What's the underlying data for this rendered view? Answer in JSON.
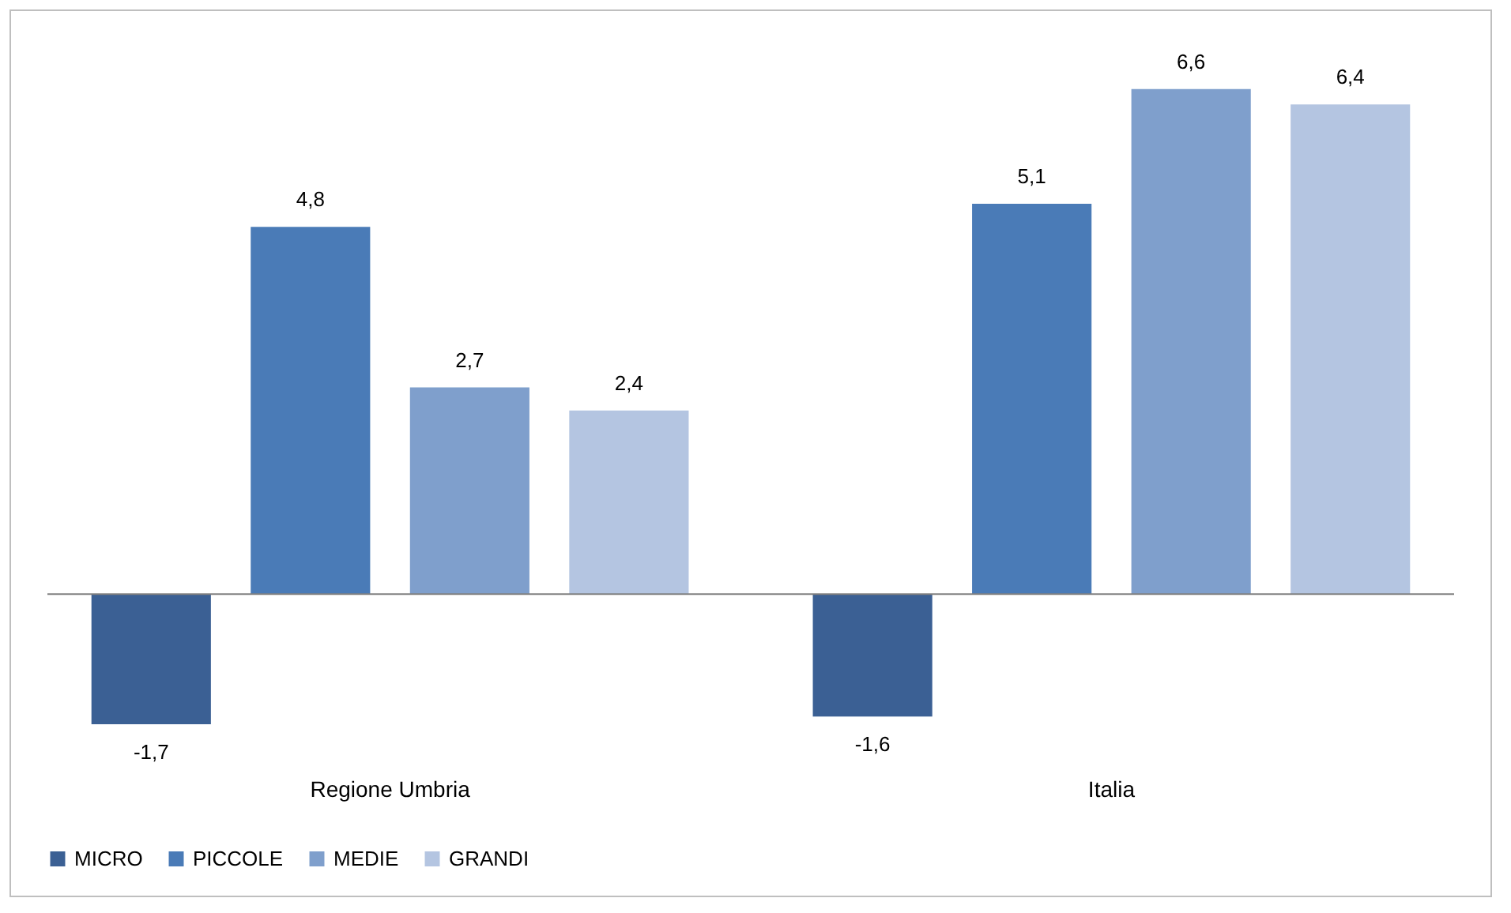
{
  "chart_data": {
    "type": "bar",
    "categories": [
      "Regione Umbria",
      "Italia"
    ],
    "series": [
      {
        "name": "MICRO",
        "color": "#3b6094",
        "values": [
          -1.7,
          -1.6
        ],
        "value_labels": [
          "-1,7",
          "-1,6"
        ]
      },
      {
        "name": "PICCOLE",
        "color": "#4a7bb7",
        "values": [
          4.8,
          5.1
        ],
        "value_labels": [
          "4,8",
          "5,1"
        ]
      },
      {
        "name": "MEDIE",
        "color": "#7f9fcc",
        "values": [
          2.7,
          6.6
        ],
        "value_labels": [
          "2,7",
          "6,6"
        ]
      },
      {
        "name": "GRANDI",
        "color": "#b4c5e1",
        "values": [
          2.4,
          6.4
        ],
        "value_labels": [
          "2,4",
          "6,4"
        ]
      }
    ],
    "legend": "bottom"
  }
}
